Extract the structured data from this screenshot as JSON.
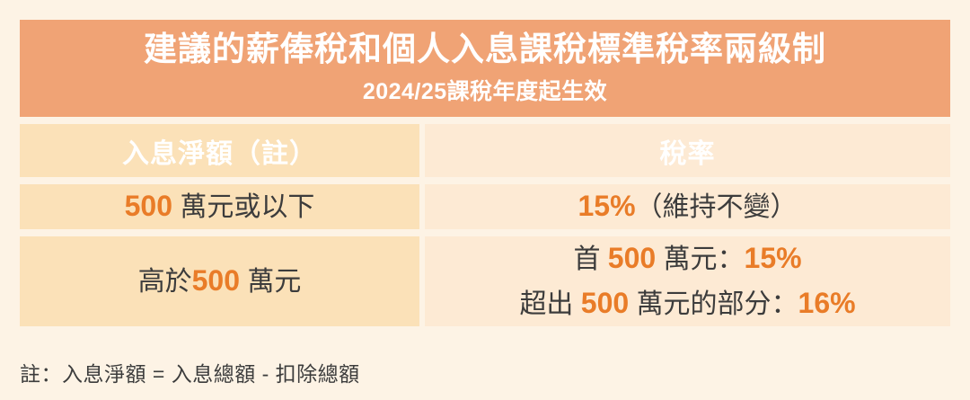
{
  "chart_data": {
    "type": "table",
    "title": "建議的薪俸稅和個人入息課稅標準稅率兩級制",
    "subtitle": "2024/25課稅年度起生效",
    "columns": [
      "入息淨額（註）",
      "稅率"
    ],
    "rows": [
      [
        "500 萬元或以下",
        "15%（維持不變）"
      ],
      [
        "高於500 萬元",
        "首 500 萬元：15%；超出 500 萬元的部分：16%"
      ]
    ],
    "footnote": "註：入息淨額 = 入息總額 - 扣除總額"
  },
  "colors": {
    "page_bg": "#FDF3E5",
    "banner_bg": "#F0A375",
    "header_bg": "#E87A2E",
    "left_cell_bg": "#FBE1B8",
    "right_cell_bg": "#FDEAD4",
    "accent_text": "#E97C28",
    "dark_text": "#3C3C3C",
    "white_text": "#FFFFFF"
  },
  "banner": {
    "title": "建議的薪俸稅和個人入息課稅標準稅率兩級制",
    "subtitle": "2024/25課稅年度起生效"
  },
  "table": {
    "headers": [
      {
        "label": "入息淨額（註）"
      },
      {
        "label": "稅率"
      }
    ],
    "rows": [
      {
        "income": [
          {
            "text": "500",
            "accent": true
          },
          {
            "text": " 萬元或以下",
            "accent": false
          }
        ],
        "rate_lines": {
          "line1": [
            {
              "text": "15%",
              "accent": true
            },
            {
              "text": "（維持不變）",
              "accent": false
            }
          ]
        }
      },
      {
        "income": [
          {
            "text": "高於",
            "accent": false
          },
          {
            "text": "500",
            "accent": true
          },
          {
            "text": " 萬元",
            "accent": false
          }
        ],
        "rate_lines": {
          "line1": [
            {
              "text": "首 ",
              "accent": false
            },
            {
              "text": "500",
              "accent": true
            },
            {
              "text": " 萬元：",
              "accent": false
            },
            {
              "text": "15%",
              "accent": true
            }
          ],
          "line2": [
            {
              "text": "超出 ",
              "accent": false
            },
            {
              "text": "500",
              "accent": true
            },
            {
              "text": " 萬元的部分：",
              "accent": false
            },
            {
              "text": "16%",
              "accent": true
            }
          ]
        }
      }
    ]
  },
  "footnote": "註：入息淨額 = 入息總額 - 扣除總額"
}
